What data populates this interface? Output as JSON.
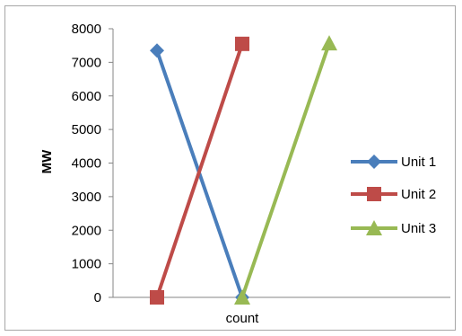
{
  "chart_data": {
    "type": "line",
    "title": "",
    "xlabel": "count",
    "ylabel": "MW",
    "ylim": [
      0,
      8000
    ],
    "yticks": [
      0,
      1000,
      2000,
      3000,
      4000,
      5000,
      6000,
      7000,
      8000
    ],
    "grid": false,
    "legend_position": "right",
    "series": [
      {
        "name": "Unit 1",
        "color": "#4a7ebb",
        "marker": "diamond",
        "points": [
          {
            "x": 0,
            "y": 7350
          },
          {
            "x": 1,
            "y": 0
          }
        ]
      },
      {
        "name": "Unit 2",
        "color": "#be4b48",
        "marker": "square",
        "points": [
          {
            "x": 0,
            "y": 0
          },
          {
            "x": 1,
            "y": 7550
          }
        ]
      },
      {
        "name": "Unit 3",
        "color": "#98b954",
        "marker": "triangle",
        "points": [
          {
            "x": 1,
            "y": 0
          },
          {
            "x": 2,
            "y": 7570
          }
        ]
      }
    ]
  }
}
